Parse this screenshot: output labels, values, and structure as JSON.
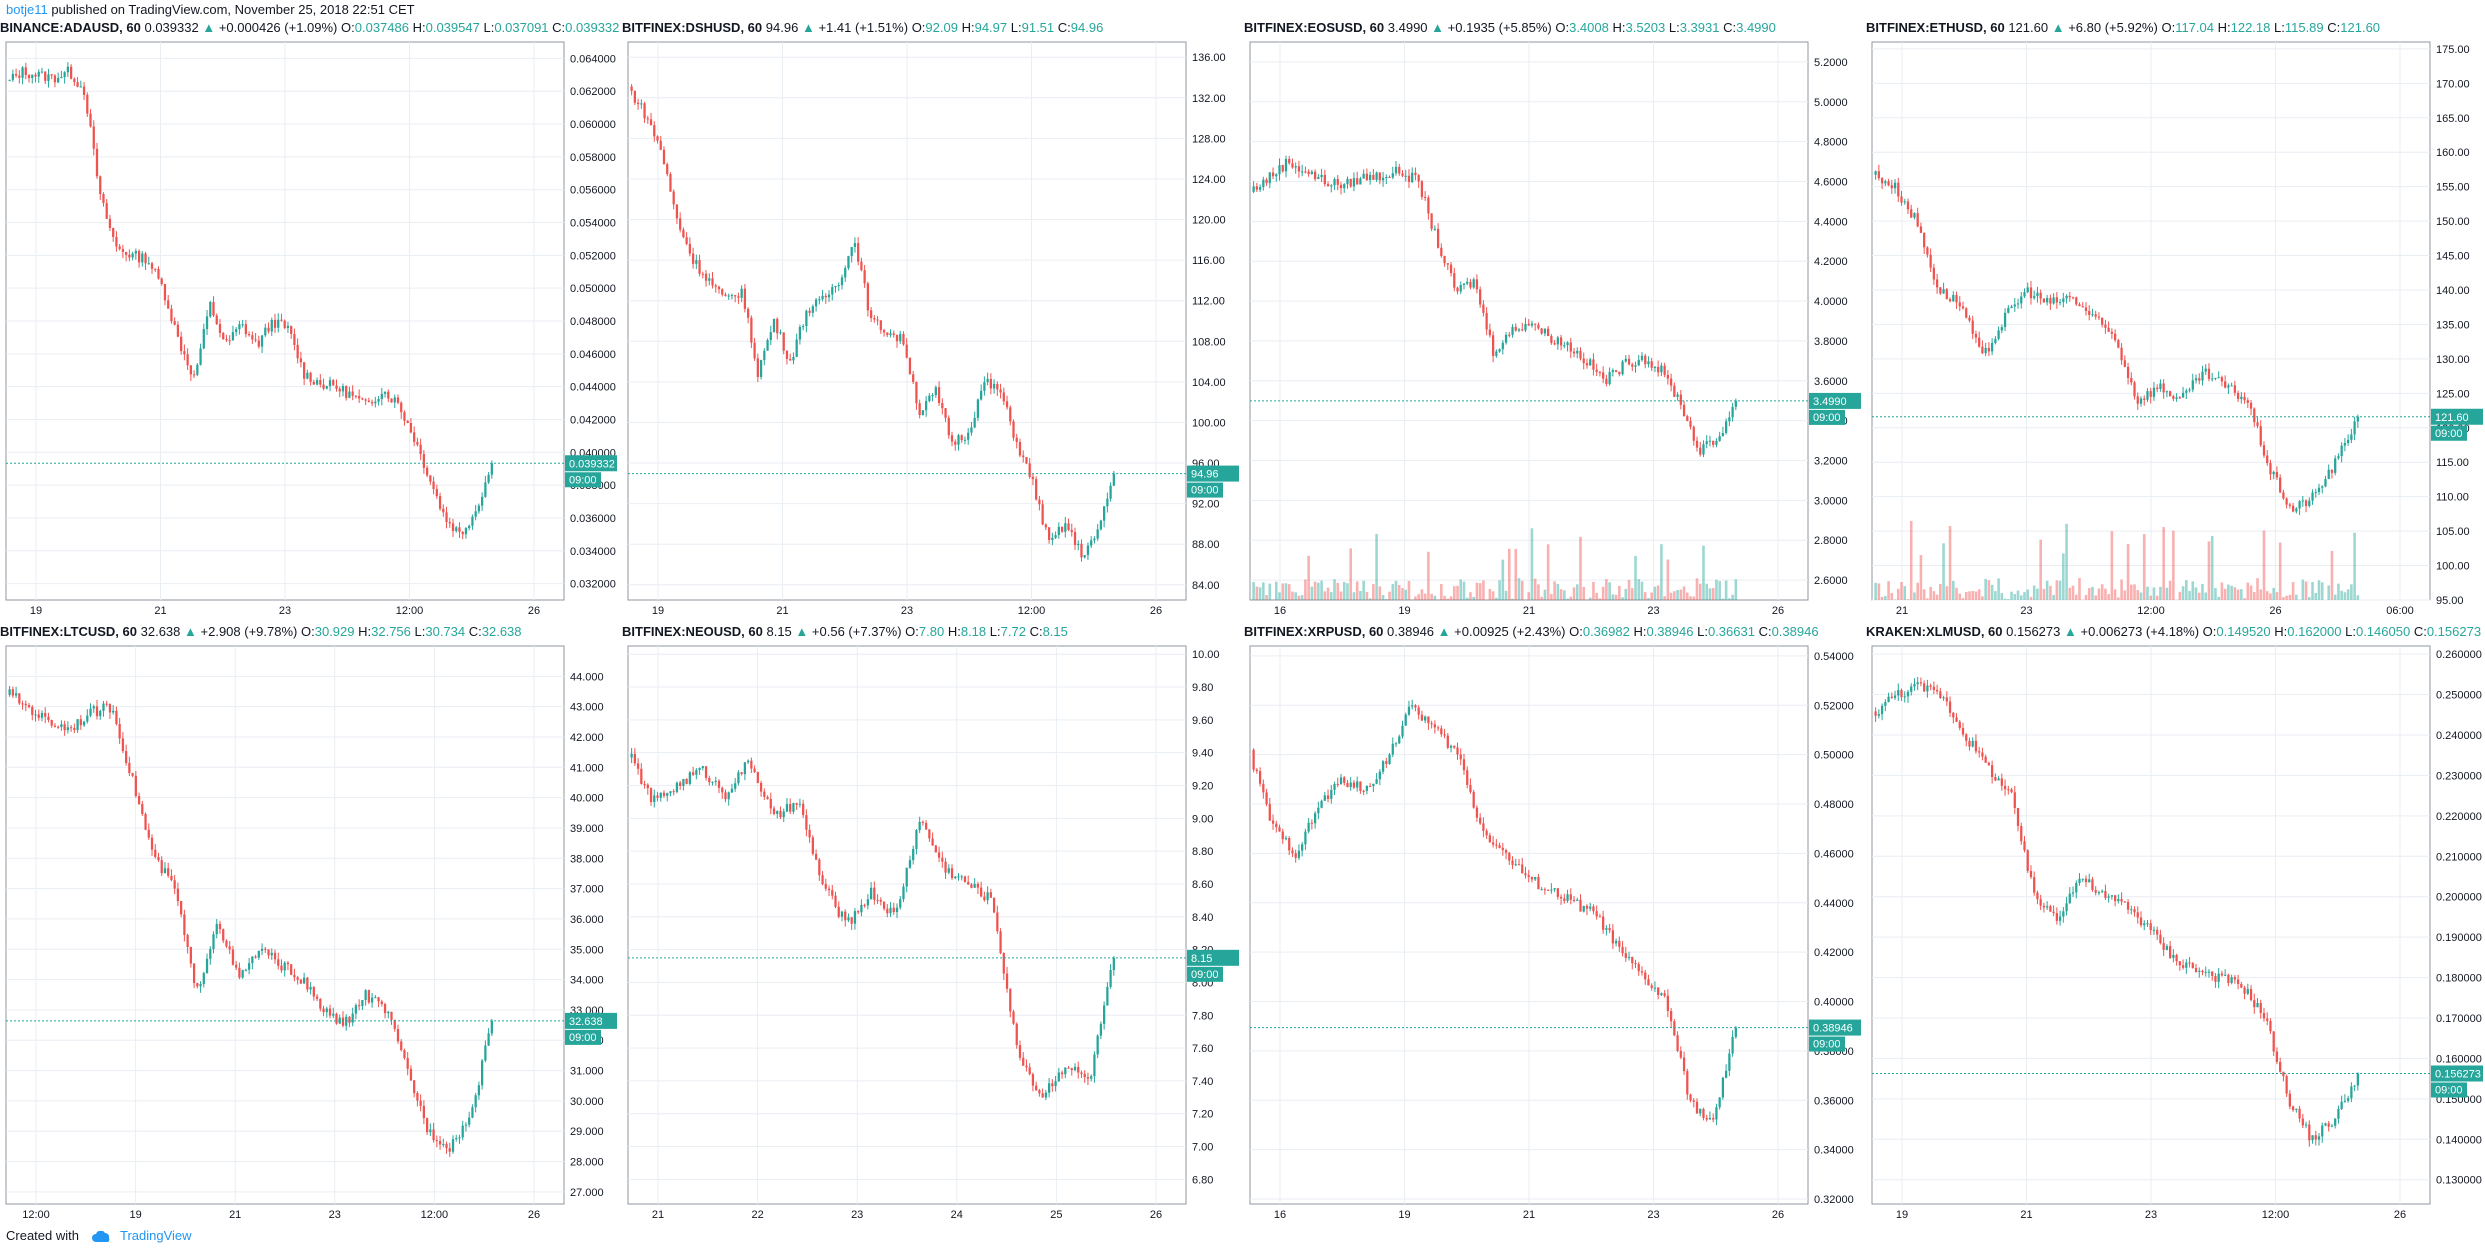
{
  "header": {
    "author": "botje11",
    "published": "published on TradingView.com, November 25, 2018 22:51 CET"
  },
  "footer": {
    "created_with": "Created with",
    "brand": "TradingView"
  },
  "colors": {
    "up": "#26a69a",
    "down": "#ef5350",
    "grid": "#e9eef3",
    "axis": "#131722",
    "label_bg": "#26a69a"
  },
  "panels": [
    {
      "symbol": "BINANCE:ADAUSD, 60",
      "last": "0.039332",
      "change": "+0.000426 (+1.09%)",
      "o": "0.037486",
      "h": "0.039547",
      "l": "0.037091",
      "c": "0.039332",
      "time_label": "09:00",
      "x_ticks": [
        "19",
        "21",
        "23",
        "12:00",
        "26"
      ],
      "volume": false
    },
    {
      "symbol": "BITFINEX:DSHUSD, 60",
      "last": "94.96",
      "change": "+1.41 (+1.51%)",
      "o": "92.09",
      "h": "94.97",
      "l": "91.51",
      "c": "94.96",
      "time_label": "09:00",
      "x_ticks": [
        "19",
        "21",
        "23",
        "12:00",
        "26"
      ],
      "volume": false
    },
    {
      "symbol": "BITFINEX:EOSUSD, 60",
      "last": "3.4990",
      "change": "+0.1935 (+5.85%)",
      "o": "3.4008",
      "h": "3.5203",
      "l": "3.3931",
      "c": "3.4990",
      "time_label": "09:00",
      "x_ticks": [
        "16",
        "19",
        "21",
        "23",
        "26"
      ],
      "volume": true
    },
    {
      "symbol": "BITFINEX:ETHUSD, 60",
      "last": "121.60",
      "change": "+6.80 (+5.92%)",
      "o": "117.04",
      "h": "122.18",
      "l": "115.89",
      "c": "121.60",
      "time_label": "09:00",
      "x_ticks": [
        "21",
        "23",
        "12:00",
        "26",
        "06:00"
      ],
      "volume": true
    },
    {
      "symbol": "BITFINEX:LTCUSD, 60",
      "last": "32.638",
      "change": "+2.908 (+9.78%)",
      "o": "30.929",
      "h": "32.756",
      "l": "30.734",
      "c": "32.638",
      "time_label": "09:00",
      "x_ticks": [
        "12:00",
        "19",
        "21",
        "23",
        "12:00",
        "26"
      ],
      "volume": false
    },
    {
      "symbol": "BITFINEX:NEOUSD, 60",
      "last": "8.15",
      "change": "+0.56 (+7.37%)",
      "o": "7.80",
      "h": "8.18",
      "l": "7.72",
      "c": "8.15",
      "time_label": "09:00",
      "x_ticks": [
        "21",
        "22",
        "23",
        "24",
        "25",
        "26"
      ],
      "volume": false
    },
    {
      "symbol": "BITFINEX:XRPUSD, 60",
      "last": "0.38946",
      "change": "+0.00925 (+2.43%)",
      "o": "0.36982",
      "h": "0.38946",
      "l": "0.36631",
      "c": "0.38946",
      "time_label": "09:00",
      "x_ticks": [
        "16",
        "19",
        "21",
        "23",
        "26"
      ],
      "volume": false
    },
    {
      "symbol": "KRAKEN:XLMUSD, 60",
      "last": "0.156273",
      "change": "+0.006273 (+4.18%)",
      "o": "0.149520",
      "h": "0.162000",
      "l": "0.146050",
      "c": "0.156273",
      "time_label": "09:00",
      "x_ticks": [
        "19",
        "21",
        "23",
        "12:00",
        "26"
      ],
      "volume": false
    }
  ],
  "chart_data": [
    {
      "type": "line",
      "title": "BINANCE:ADAUSD, 60",
      "ylim": [
        0.031,
        0.065
      ],
      "decimals": 6,
      "y_ticks": [
        0.032,
        0.034,
        0.036,
        0.038,
        0.04,
        0.042,
        0.044,
        0.046,
        0.048,
        0.05,
        0.052,
        0.054,
        0.056,
        0.058,
        0.06,
        0.062,
        0.064
      ],
      "last": 0.039332,
      "series": [
        {
          "values": [
            0.0625,
            0.0632,
            0.063,
            0.0628,
            0.0632,
            0.062,
            0.0555,
            0.0525,
            0.052,
            0.0518,
            0.05,
            0.0468,
            0.0445,
            0.049,
            0.0465,
            0.0478,
            0.0465,
            0.048,
            0.0475,
            0.0448,
            0.0442,
            0.044,
            0.0435,
            0.0428,
            0.0438,
            0.043,
            0.041,
            0.0385,
            0.036,
            0.035,
            0.0365,
            0.0393
          ]
        }
      ]
    },
    {
      "type": "line",
      "title": "BITFINEX:DSHUSD, 60",
      "ylim": [
        82.5,
        137.5
      ],
      "decimals": 2,
      "y_ticks": [
        84,
        88,
        92,
        96,
        100,
        104,
        108,
        112,
        116,
        120,
        124,
        128,
        132,
        136
      ],
      "last": 94.96,
      "series": [
        {
          "values": [
            133.0,
            130.5,
            127.0,
            120.0,
            116.0,
            114.0,
            112.0,
            113.0,
            105.0,
            110.0,
            106.0,
            111.0,
            112.0,
            114.0,
            118.0,
            110.0,
            109.0,
            108.0,
            101.0,
            103.0,
            98.0,
            99.0,
            104.0,
            103.0,
            98.0,
            94.0,
            88.0,
            90.0,
            87.0,
            89.0,
            95.0
          ]
        }
      ]
    },
    {
      "type": "line",
      "title": "BITFINEX:EOSUSD, 60",
      "ylim": [
        2.5,
        5.3
      ],
      "decimals": 4,
      "y_ticks": [
        2.6,
        2.8,
        3.0,
        3.2,
        3.4,
        3.6,
        3.8,
        4.0,
        4.2,
        4.4,
        4.6,
        4.8,
        5.0,
        5.2
      ],
      "last": 3.499,
      "series": [
        {
          "values": [
            4.55,
            4.62,
            4.7,
            4.65,
            4.6,
            4.58,
            4.62,
            4.63,
            4.65,
            4.6,
            4.3,
            4.05,
            4.1,
            3.75,
            3.85,
            3.9,
            3.82,
            3.78,
            3.7,
            3.6,
            3.68,
            3.72,
            3.65,
            3.5,
            3.25,
            3.3,
            3.5
          ]
        }
      ],
      "volume": true
    },
    {
      "type": "line",
      "title": "BITFINEX:ETHUSD, 60",
      "ylim": [
        95,
        176
      ],
      "decimals": 2,
      "y_ticks": [
        95,
        100,
        105,
        110,
        115,
        120,
        125,
        130,
        135,
        140,
        145,
        150,
        155,
        160,
        165,
        170,
        175
      ],
      "last": 121.6,
      "series": [
        {
          "values": [
            157.0,
            155.0,
            150.0,
            140.0,
            138.0,
            130.0,
            136.0,
            140.0,
            138.0,
            139.0,
            136.0,
            133.0,
            124.0,
            126.0,
            124.0,
            128.0,
            126.0,
            124.0,
            114.0,
            108.0,
            110.0,
            115.0,
            121.6
          ]
        }
      ],
      "volume": true
    },
    {
      "type": "line",
      "title": "BITFINEX:LTCUSD, 60",
      "ylim": [
        26.6,
        45.0
      ],
      "decimals": 3,
      "y_ticks": [
        27,
        28,
        29,
        30,
        31,
        32,
        33,
        34,
        35,
        36,
        37,
        38,
        39,
        40,
        41,
        42,
        43,
        44
      ],
      "last": 32.638,
      "series": [
        {
          "values": [
            43.5,
            43.0,
            42.5,
            42.3,
            42.8,
            43.0,
            40.5,
            38.0,
            37.0,
            33.5,
            36.0,
            34.0,
            35.0,
            34.5,
            34.0,
            33.0,
            32.5,
            33.5,
            33.0,
            31.0,
            29.0,
            28.5,
            29.5,
            32.6
          ]
        }
      ]
    },
    {
      "type": "line",
      "title": "BITFINEX:NEOUSD, 60",
      "ylim": [
        6.65,
        10.05
      ],
      "decimals": 2,
      "y_ticks": [
        6.8,
        7.0,
        7.2,
        7.4,
        7.6,
        7.8,
        8.0,
        8.2,
        8.4,
        8.6,
        8.8,
        9.0,
        9.2,
        9.4,
        9.6,
        9.8,
        10.0
      ],
      "last": 8.15,
      "series": [
        {
          "values": [
            9.4,
            9.1,
            9.2,
            9.3,
            9.15,
            9.35,
            9.0,
            9.1,
            8.6,
            8.35,
            8.55,
            8.4,
            9.0,
            8.7,
            8.6,
            8.5,
            7.6,
            7.3,
            7.5,
            7.4,
            8.15
          ]
        }
      ]
    },
    {
      "type": "line",
      "title": "BITFINEX:XRPUSD, 60",
      "ylim": [
        0.318,
        0.544
      ],
      "decimals": 5,
      "y_ticks": [
        0.32,
        0.34,
        0.36,
        0.38,
        0.4,
        0.42,
        0.44,
        0.46,
        0.48,
        0.5,
        0.52,
        0.54
      ],
      "last": 0.38946,
      "series": [
        {
          "values": [
            0.5,
            0.47,
            0.46,
            0.48,
            0.49,
            0.485,
            0.5,
            0.52,
            0.51,
            0.5,
            0.47,
            0.46,
            0.45,
            0.445,
            0.44,
            0.435,
            0.42,
            0.41,
            0.4,
            0.36,
            0.35,
            0.389
          ]
        }
      ]
    },
    {
      "type": "line",
      "title": "KRAKEN:XLMUSD, 60",
      "ylim": [
        0.124,
        0.262
      ],
      "decimals": 6,
      "y_ticks": [
        0.13,
        0.14,
        0.15,
        0.16,
        0.17,
        0.18,
        0.19,
        0.2,
        0.21,
        0.22,
        0.23,
        0.24,
        0.25,
        0.26
      ],
      "last": 0.156273,
      "series": [
        {
          "values": [
            0.245,
            0.25,
            0.252,
            0.25,
            0.24,
            0.232,
            0.225,
            0.2,
            0.195,
            0.205,
            0.2,
            0.198,
            0.192,
            0.185,
            0.182,
            0.18,
            0.178,
            0.17,
            0.15,
            0.14,
            0.145,
            0.156
          ]
        }
      ]
    }
  ]
}
